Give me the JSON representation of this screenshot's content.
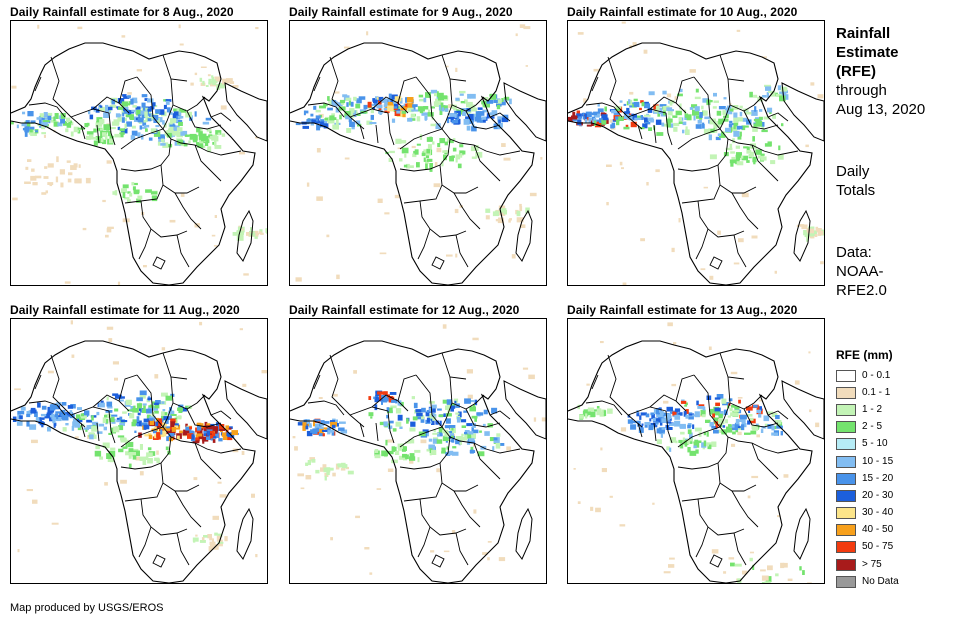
{
  "panels": [
    {
      "title": "Daily Rainfall estimate for 8 Aug., 2020"
    },
    {
      "title": "Daily Rainfall estimate for 9 Aug., 2020"
    },
    {
      "title": "Daily Rainfall estimate for 10 Aug., 2020"
    },
    {
      "title": "Daily Rainfall estimate for 11 Aug., 2020"
    },
    {
      "title": "Daily Rainfall estimate for 12 Aug., 2020"
    },
    {
      "title": "Daily Rainfall estimate for 13 Aug., 2020"
    }
  ],
  "sidebar": {
    "title_line1": "Rainfall",
    "title_line2": "Estimate",
    "title_line3": "(RFE)",
    "through_line1": "through",
    "through_line2": "Aug 13, 2020",
    "totals_line1": "Daily",
    "totals_line2": "Totals",
    "data_line1": "Data:",
    "data_line2": "NOAA-",
    "data_line3": "RFE2.0"
  },
  "legend": {
    "title": "RFE (mm)",
    "items": [
      {
        "label": "0 - 0.1",
        "color": "#ffffff"
      },
      {
        "label": "0.1 - 1",
        "color": "#f1dcbc"
      },
      {
        "label": "1 - 2",
        "color": "#c3f4b6"
      },
      {
        "label": "2 - 5",
        "color": "#74e36e"
      },
      {
        "label": "5 - 10",
        "color": "#b6ecf6"
      },
      {
        "label": "10 - 15",
        "color": "#82bdf2"
      },
      {
        "label": "15 - 20",
        "color": "#4993ea"
      },
      {
        "label": "20 - 30",
        "color": "#1c5fdc"
      },
      {
        "label": "30 - 40",
        "color": "#fce58a"
      },
      {
        "label": "40 - 50",
        "color": "#f7a01b"
      },
      {
        "label": "50 - 75",
        "color": "#f23b0f"
      },
      {
        "label": "> 75",
        "color": "#a81b1b"
      },
      {
        "label": "No Data",
        "color": "#999999"
      }
    ]
  },
  "footer": {
    "text": "Map produced by USGS/EROS"
  }
}
